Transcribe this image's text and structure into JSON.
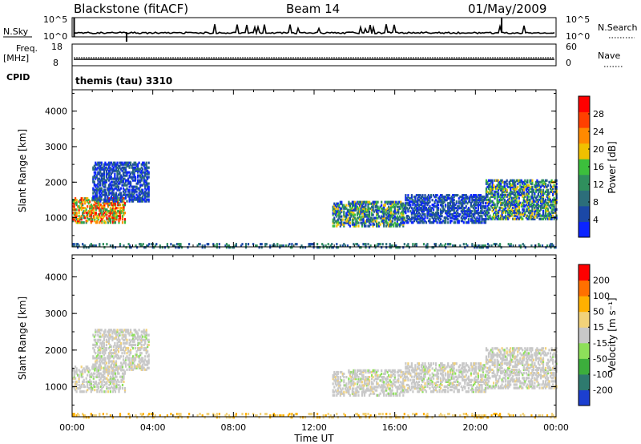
{
  "header": {
    "station": "Blackstone (fitACF)",
    "beam": "Beam 14",
    "date": "01/May/2009"
  },
  "strips": {
    "nsky_label": "N.Sky",
    "nsearch_label": "N.Search",
    "nsky_ticks": [
      "10^5",
      "10^0"
    ],
    "nsearch_ticks": [
      "10^5",
      "10^0"
    ],
    "freq_label_1": "Freq.",
    "freq_label_2": "[MHz]",
    "freq_ticks": [
      "18",
      "8"
    ],
    "nave_label": "Nave",
    "nave_ticks": [
      "60",
      "0"
    ],
    "cpid_label": "CPID",
    "cpid_value": "themis (tau) 3310"
  },
  "chart_data": [
    {
      "type": "heatmap",
      "name": "Power",
      "ylabel": "Slant Range [km]",
      "xlabel": "Time UT",
      "ylim": [
        180,
        4600
      ],
      "xlim": [
        0,
        24
      ],
      "yticks": [
        "4000",
        "3000",
        "2000",
        "1000"
      ],
      "xticks": [
        "00:00",
        "04:00",
        "08:00",
        "12:00",
        "16:00",
        "20:00",
        "00:00"
      ],
      "colorbar_label": "Power [dB]",
      "colorbar_ticks": [
        "28",
        "24",
        "20",
        "16",
        "12",
        "8",
        "4"
      ],
      "colorbar_colors": [
        "#0b24ff",
        "#1b48a6",
        "#2c6e7a",
        "#2f8f5d",
        "#3cbf3c",
        "#f0c000",
        "#ff8a00",
        "#ff4000",
        "#ff0000"
      ],
      "regions": [
        {
          "t0": 0.0,
          "t1": 2.6,
          "r0": 900,
          "r1": 1600,
          "level": "high"
        },
        {
          "t0": 1.0,
          "t1": 3.8,
          "r0": 1500,
          "r1": 2600,
          "level": "low"
        },
        {
          "t0": 12.9,
          "t1": 16.5,
          "r0": 800,
          "r1": 1500,
          "level": "mid"
        },
        {
          "t0": 16.5,
          "t1": 20.5,
          "r0": 900,
          "r1": 1700,
          "level": "low"
        },
        {
          "t0": 20.5,
          "t1": 24.0,
          "r0": 1000,
          "r1": 2100,
          "level": "mid"
        },
        {
          "t0": 0.0,
          "t1": 24.0,
          "r0": 200,
          "r1": 300,
          "level": "ground"
        }
      ]
    },
    {
      "type": "heatmap",
      "name": "Velocity",
      "ylabel": "Slant Range [km]",
      "xlabel": "Time UT",
      "ylim": [
        180,
        4600
      ],
      "xlim": [
        0,
        24
      ],
      "yticks": [
        "4000",
        "3000",
        "2000",
        "1000"
      ],
      "xticks": [
        "00:00",
        "04:00",
        "08:00",
        "12:00",
        "16:00",
        "20:00",
        "00:00"
      ],
      "colorbar_label": "Velocity [m s⁻¹]",
      "colorbar_ticks": [
        "200",
        "100",
        "50",
        "15",
        "-15",
        "-50",
        "-100",
        "-200"
      ],
      "colorbar_colors": [
        "#1c3fd0",
        "#2e7a6e",
        "#3cae3c",
        "#8ee05a",
        "#c8c8c8",
        "#f2d27a",
        "#ffb000",
        "#ff7000",
        "#ff0000"
      ]
    }
  ]
}
